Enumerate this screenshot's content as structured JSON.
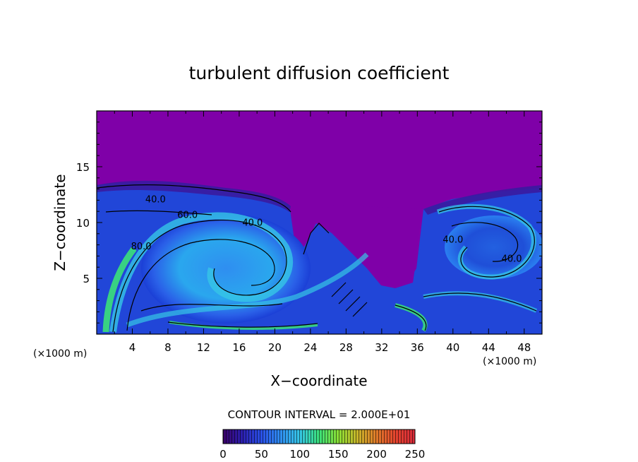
{
  "chart_data": {
    "type": "heatmap",
    "title": "turbulent diffusion coefficient",
    "xlabel": "X−coordinate",
    "ylabel": "Z−coordinate",
    "x_unit_left": "(×1000 m)",
    "x_unit_right": "(×1000 m)",
    "xlim": [
      0,
      50
    ],
    "ylim": [
      0,
      20
    ],
    "x_ticks": [
      4,
      8,
      12,
      16,
      20,
      24,
      28,
      32,
      36,
      40,
      44,
      48
    ],
    "x_tick_labels": [
      "4",
      "8",
      "12",
      "16",
      "20",
      "24",
      "28",
      "32",
      "36",
      "40",
      "44",
      "48"
    ],
    "y_ticks": [
      5,
      10,
      15
    ],
    "y_tick_labels": [
      "5",
      "10",
      "15"
    ],
    "contour_interval_text": "CONTOUR INTERVAL = 2.000E+01",
    "contour_interval": 20,
    "contour_labels": [
      {
        "text": "40.0",
        "x": 6.6,
        "z": 11.8
      },
      {
        "text": "60.0",
        "x": 10.2,
        "z": 10.4
      },
      {
        "text": "40.0",
        "x": 17.5,
        "z": 9.7
      },
      {
        "text": "80.0",
        "x": 5.0,
        "z": 7.6
      },
      {
        "text": "40.0",
        "x": 40.0,
        "z": 8.2
      },
      {
        "text": "40.0",
        "x": 46.6,
        "z": 6.5
      }
    ],
    "colorbar": {
      "min": 0,
      "max": 250,
      "ticks": [
        0,
        50,
        100,
        150,
        200,
        250
      ],
      "tick_labels": [
        "0",
        "50",
        "100",
        "150",
        "200",
        "250"
      ]
    },
    "field_description_values": {
      "upper_layer_value": 0,
      "inversion_height_km": 13,
      "vortex_left_center": [
        15,
        6
      ],
      "vortex_right_center": [
        44,
        8
      ]
    },
    "grid": false,
    "colors": {
      "upper_layer": "#7f00a8",
      "axes": "#000000",
      "background": "#ffffff"
    }
  }
}
